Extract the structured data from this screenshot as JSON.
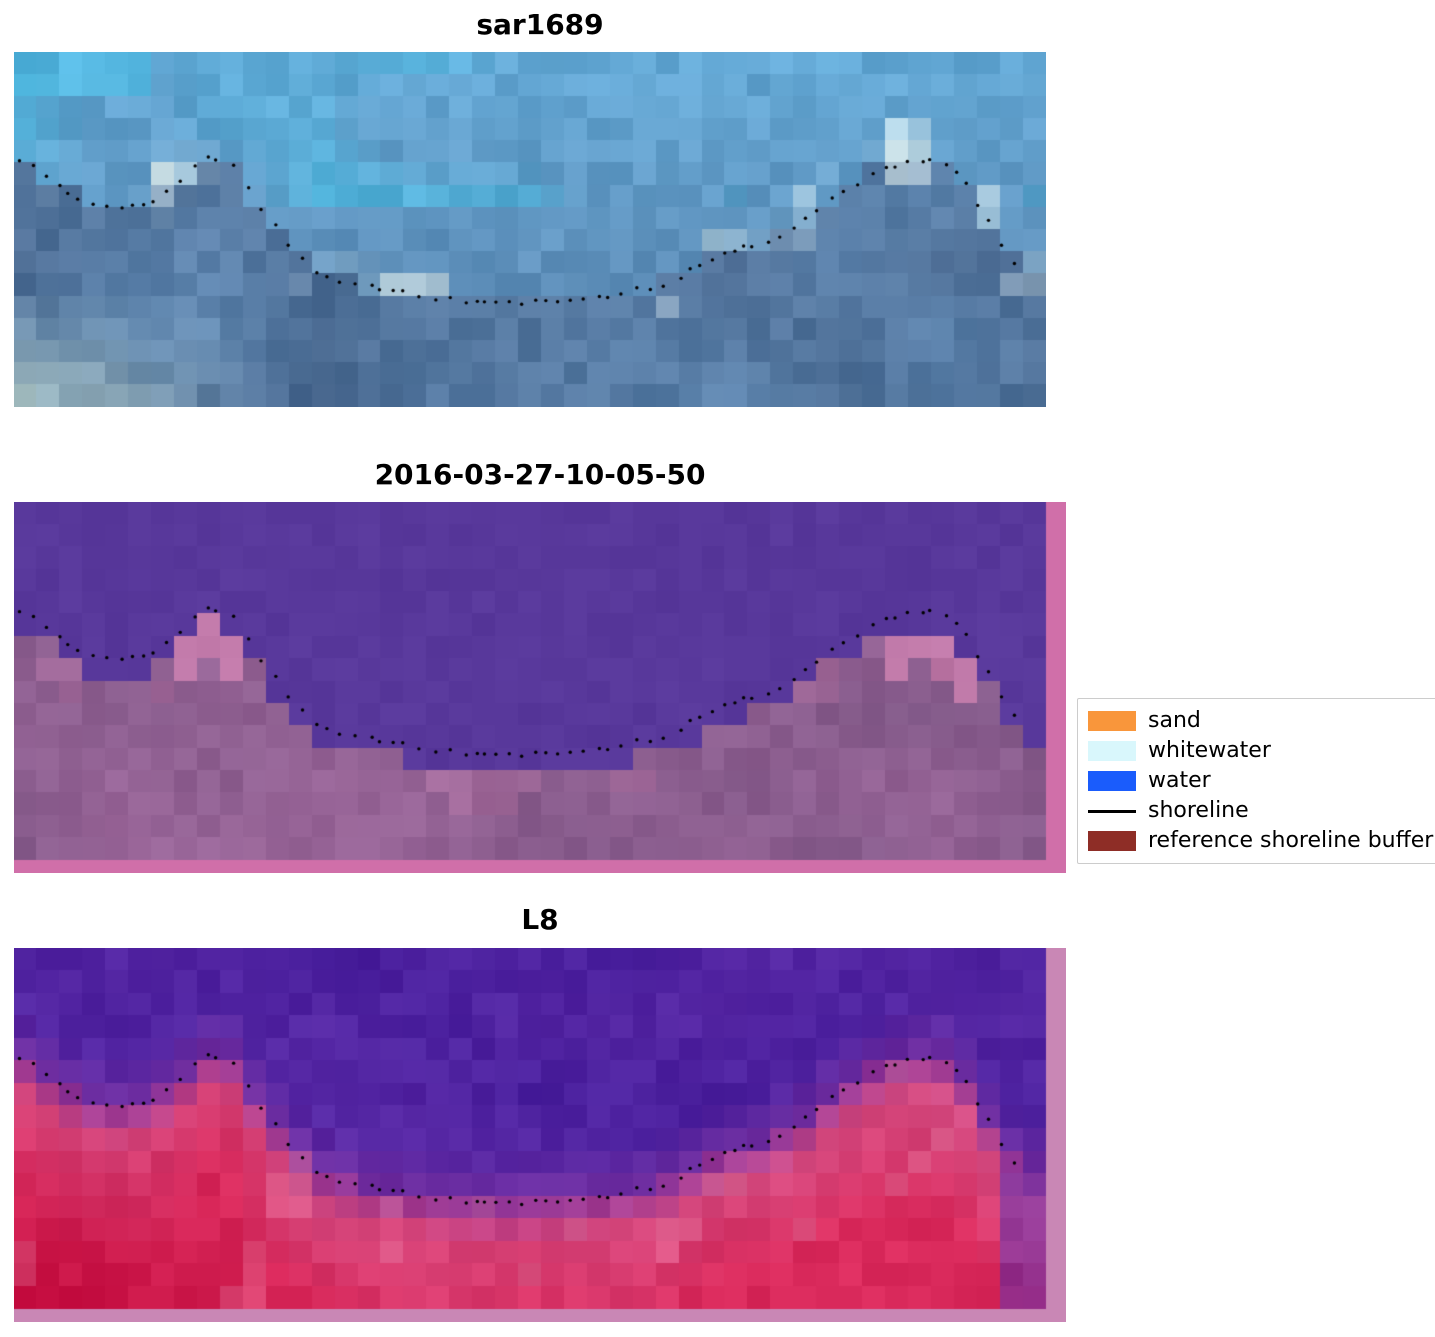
{
  "chart_data": {
    "type": "heatmap",
    "description": "Three stacked coastal image chips with a dotted mapped shoreline overlay: a SAR/optical composite (sar1689), a classified image (2016-03-27-10-05-50) and a Landsat-8 chip (L8); a legend maps the classes sand, whitewater, water, shoreline and reference shoreline buffer.",
    "panels": [
      {
        "id": "sar",
        "title": "sar1689",
        "kind": "sar"
      },
      {
        "id": "classified",
        "title": "2016-03-27-10-05-50",
        "kind": "classified"
      },
      {
        "id": "l8",
        "title": "L8",
        "kind": "l8"
      }
    ],
    "grid": {
      "cols": 45,
      "rows": 16
    },
    "shoreline_points": [
      [
        0.005,
        0.3
      ],
      [
        0.04,
        0.37
      ],
      [
        0.07,
        0.43
      ],
      [
        0.1,
        0.44
      ],
      [
        0.13,
        0.43
      ],
      [
        0.155,
        0.38
      ],
      [
        0.185,
        0.295
      ],
      [
        0.21,
        0.31
      ],
      [
        0.235,
        0.42
      ],
      [
        0.27,
        0.56
      ],
      [
        0.3,
        0.63
      ],
      [
        0.35,
        0.665
      ],
      [
        0.41,
        0.695
      ],
      [
        0.47,
        0.71
      ],
      [
        0.52,
        0.7
      ],
      [
        0.58,
        0.685
      ],
      [
        0.63,
        0.655
      ],
      [
        0.665,
        0.6
      ],
      [
        0.69,
        0.565
      ],
      [
        0.72,
        0.545
      ],
      [
        0.755,
        0.5
      ],
      [
        0.79,
        0.42
      ],
      [
        0.83,
        0.345
      ],
      [
        0.865,
        0.305
      ],
      [
        0.895,
        0.3
      ],
      [
        0.92,
        0.36
      ],
      [
        0.94,
        0.45
      ],
      [
        0.955,
        0.54
      ],
      [
        0.975,
        0.615
      ]
    ],
    "colors": {
      "sar": {
        "top": "#63a9d6",
        "cyan": "#45c4ea",
        "mid": "#5e86b0",
        "deep": "#49688f",
        "white": "#ecf6f1",
        "pale": "#cfe0cc"
      },
      "classified": {
        "water": "#58389b",
        "land": "#9a6699",
        "land_dark": "#7c5584",
        "pink": "#ce7fae",
        "bright": "#eec9d8",
        "border": "#d06fa9"
      },
      "l8": {
        "water_top": "#471e9c",
        "water_low": "#5d2ba8",
        "trans": "#8b3399",
        "pink": "#d4548b",
        "red": "#da2a5c",
        "deep_red": "#bd0336",
        "border": "#c987b5"
      },
      "dot": "#000000"
    },
    "legend": {
      "position": "right-center",
      "entries": [
        {
          "label": "sand",
          "color": "#f9963b",
          "type": "patch"
        },
        {
          "label": "whitewater",
          "color": "#d9f7fc",
          "type": "patch"
        },
        {
          "label": "water",
          "color": "#1a5cfc",
          "type": "patch"
        },
        {
          "label": "shoreline",
          "color": "#000000",
          "type": "line"
        },
        {
          "label": "reference shoreline buffer",
          "color": "#8e2d26",
          "type": "patch"
        }
      ]
    }
  }
}
